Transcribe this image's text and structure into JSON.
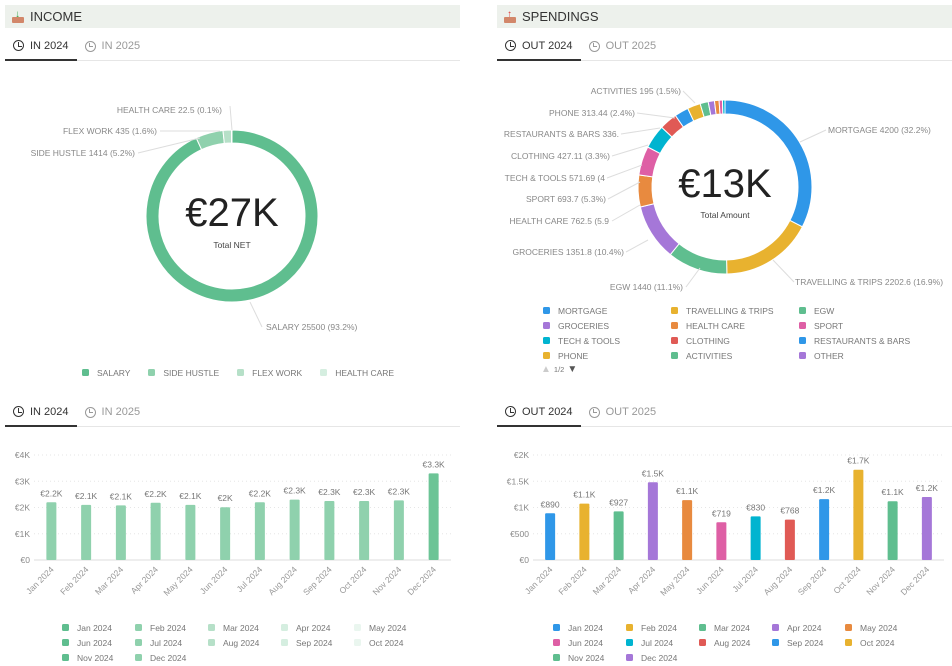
{
  "income": {
    "title": "INCOME",
    "icon": "inbox-download-icon",
    "tabs": [
      {
        "label": "IN 2024",
        "active": true
      },
      {
        "label": "IN 2025",
        "active": false
      }
    ],
    "donut": {
      "center_value": "€27K",
      "center_label": "Total NET",
      "segments": [
        {
          "name": "SALARY",
          "value": 25500,
          "pct": "93.2%",
          "label": "SALARY  25500 (93.2%)",
          "color": "#5fbe8f"
        },
        {
          "name": "SIDE HUSTLE",
          "value": 1414,
          "pct": "5.2%",
          "label": "SIDE HUSTLE  1414 (5.2%)",
          "color": "#8fd1ad"
        },
        {
          "name": "FLEX WORK",
          "value": 435,
          "pct": "1.6%",
          "label": "FLEX WORK  435 (1.6%)",
          "color": "#b6e0c8"
        },
        {
          "name": "HEALTH CARE",
          "value": 22.5,
          "pct": "0.1%",
          "label": "HEALTH CARE  22.5 (0.1%)",
          "color": "#d5eee0"
        }
      ],
      "legend": [
        "SALARY",
        "SIDE HUSTLE",
        "FLEX WORK",
        "HEALTH CARE"
      ]
    },
    "bar_tabs": [
      {
        "label": "IN 2024",
        "active": true
      },
      {
        "label": "IN 2025",
        "active": false
      }
    ]
  },
  "spendings": {
    "title": "SPENDINGS",
    "icon": "inbox-upload-icon",
    "tabs": [
      {
        "label": "OUT 2024",
        "active": true
      },
      {
        "label": "OUT 2025",
        "active": false
      }
    ],
    "donut": {
      "center_value": "€13K",
      "center_label": "Total Amount",
      "segments": [
        {
          "name": "MORTGAGE",
          "value": 4200,
          "label": "MORTGAGE  4200 (32.2%)",
          "color": "#2f97e8"
        },
        {
          "name": "TRAVELLING & TRIPS",
          "value": 2202.6,
          "label": "TRAVELLING & TRIPS  2202.6 (16.9%)",
          "color": "#e8b22f"
        },
        {
          "name": "EGW",
          "value": 1440,
          "label": "EGW  1440 (11.1%)",
          "color": "#5fbe8f"
        },
        {
          "name": "GROCERIES",
          "value": 1351.8,
          "label": "GROCERIES  1351.8 (10.4%)",
          "color": "#a577d8"
        },
        {
          "name": "HEALTH CARE",
          "value": 762.5,
          "label": "HEALTH CARE  762.5 (5.9",
          "color": "#e88a3f"
        },
        {
          "name": "SPORT",
          "value": 693.7,
          "label": "SPORT  693.7 (5.3%)",
          "color": "#de5fa5"
        },
        {
          "name": "TECH & TOOLS",
          "value": 571.69,
          "label": "TECH & TOOLS  571.69 (4",
          "color": "#00b4d0"
        },
        {
          "name": "CLOTHING",
          "value": 427.11,
          "label": "CLOTHING  427.11 (3.3%)",
          "color": "#e05a55"
        },
        {
          "name": "RESTAURANTS & BARS",
          "value": 336,
          "label": "RESTAURANTS & BARS  336.",
          "color": "#2f97e8"
        },
        {
          "name": "PHONE",
          "value": 313.44,
          "label": "PHONE  313.44 (2.4%)",
          "color": "#e8b22f"
        },
        {
          "name": "ACTIVITIES",
          "value": 195,
          "label": "ACTIVITIES  195 (1.5%)",
          "color": "#5fbe8f"
        },
        {
          "name": "OTHER",
          "value": 150,
          "label": "",
          "color": "#a577d8"
        },
        {
          "name": "",
          "value": 110,
          "label": "",
          "color": "#e88a3f"
        },
        {
          "name": "",
          "value": 80,
          "label": "",
          "color": "#de5fa5"
        },
        {
          "name": "",
          "value": 60,
          "label": "",
          "color": "#00b4d0"
        }
      ],
      "legend": [
        {
          "name": "MORTGAGE",
          "color": "#2f97e8"
        },
        {
          "name": "TRAVELLING & TRIPS",
          "color": "#e8b22f"
        },
        {
          "name": "EGW",
          "color": "#5fbe8f"
        },
        {
          "name": "GROCERIES",
          "color": "#a577d8"
        },
        {
          "name": "HEALTH CARE",
          "color": "#e88a3f"
        },
        {
          "name": "SPORT",
          "color": "#de5fa5"
        },
        {
          "name": "TECH & TOOLS",
          "color": "#00b4d0"
        },
        {
          "name": "CLOTHING",
          "color": "#e05a55"
        },
        {
          "name": "RESTAURANTS & BARS",
          "color": "#2f97e8"
        },
        {
          "name": "PHONE",
          "color": "#e8b22f"
        },
        {
          "name": "ACTIVITIES",
          "color": "#5fbe8f"
        },
        {
          "name": "OTHER",
          "color": "#a577d8"
        }
      ],
      "legend_page": "1/2"
    },
    "bar_tabs": [
      {
        "label": "OUT 2024",
        "active": true
      },
      {
        "label": "OUT 2025",
        "active": false
      }
    ]
  },
  "chart_data": [
    {
      "type": "bar",
      "categories": [
        "Jan 2024",
        "Feb 2024",
        "Mar 2024",
        "Apr 2024",
        "May 2024",
        "Jun 2024",
        "Jul 2024",
        "Aug 2024",
        "Sep 2024",
        "Oct 2024",
        "Nov 2024",
        "Dec 2024"
      ],
      "values": [
        2200,
        2100,
        2080,
        2180,
        2100,
        2010,
        2200,
        2300,
        2250,
        2250,
        2270,
        3300
      ],
      "data_labels": [
        "€2.2K",
        "€2.1K",
        "€2.1K",
        "€2.2K",
        "€2.1K",
        "€2K",
        "€2.2K",
        "€2.3K",
        "€2.3K",
        "€2.3K",
        "€2.3K",
        "€3.3K"
      ],
      "colors": [
        "#8fd1ad",
        "#8fd1ad",
        "#8fd1ad",
        "#8fd1ad",
        "#8fd1ad",
        "#8fd1ad",
        "#8fd1ad",
        "#8fd1ad",
        "#8fd1ad",
        "#8fd1ad",
        "#8fd1ad",
        "#6cc496"
      ],
      "legend_colors": [
        "#5fbe8f",
        "#8fd1ad",
        "#b6e0c8",
        "#d5eee0",
        "#eaf6ef",
        "#5fbe8f",
        "#8fd1ad",
        "#b6e0c8",
        "#d5eee0",
        "#eaf6ef",
        "#5fbe8f",
        "#8fd1ad"
      ],
      "yticks": [
        "€0",
        "€1K",
        "€2K",
        "€3K",
        "€4K"
      ],
      "ylim": [
        0,
        4000
      ],
      "grid": true,
      "legend": "bottom"
    },
    {
      "type": "bar",
      "categories": [
        "Jan 2024",
        "Feb 2024",
        "Mar 2024",
        "Apr 2024",
        "May 2024",
        "Jun 2024",
        "Jul 2024",
        "Aug 2024",
        "Sep 2024",
        "Oct 2024",
        "Nov 2024",
        "Dec 2024"
      ],
      "values": [
        890,
        1075,
        927,
        1480,
        1140,
        719,
        830,
        768,
        1160,
        1720,
        1120,
        1200
      ],
      "data_labels": [
        "€890",
        "€1.1K",
        "€927",
        "€1.5K",
        "€1.1K",
        "€719",
        "€830",
        "€768",
        "€1.2K",
        "€1.7K",
        "€1.1K",
        "€1.2K"
      ],
      "colors": [
        "#2f97e8",
        "#e8b22f",
        "#5fbe8f",
        "#a577d8",
        "#e88a3f",
        "#de5fa5",
        "#00b4d0",
        "#e05a55",
        "#2f97e8",
        "#e8b22f",
        "#5fbe8f",
        "#a577d8"
      ],
      "legend_colors": [
        "#2f97e8",
        "#e8b22f",
        "#5fbe8f",
        "#a577d8",
        "#e88a3f",
        "#de5fa5",
        "#00b4d0",
        "#e05a55",
        "#2f97e8",
        "#e8b22f",
        "#5fbe8f",
        "#a577d8"
      ],
      "yticks": [
        "€0",
        "€500",
        "€1K",
        "€1.5K",
        "€2K"
      ],
      "ylim": [
        0,
        2000
      ],
      "grid": true,
      "legend": "bottom"
    }
  ]
}
